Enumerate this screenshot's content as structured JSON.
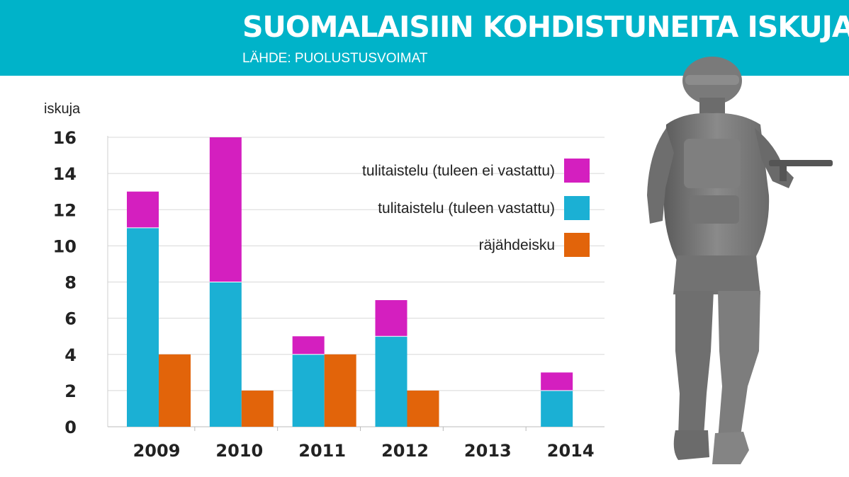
{
  "header": {
    "title": "SUOMALAISIIN KOHDISTUNEITA ISKUJA",
    "source": "LÄHDE: PUOLUSTUSVOIMAT"
  },
  "illustration": {
    "icon": "soldier-silhouette-icon"
  },
  "colors": {
    "header_bg": "#00b3c9",
    "not_returned": "#d41fbf",
    "returned": "#1bb0d4",
    "explosion": "#e2640a",
    "grid": "#d8d8d8"
  },
  "chart_data": {
    "type": "bar",
    "stacked_groups": true,
    "ylabel": "iskuja",
    "ylim": [
      0,
      16
    ],
    "yticks": [
      "0",
      "2",
      "4",
      "6",
      "8",
      "10",
      "12",
      "14",
      "16"
    ],
    "categories": [
      "2009",
      "2010",
      "2011",
      "2012",
      "2013",
      "2014"
    ],
    "series": [
      {
        "name": "tulitaistelu (tuleen ei vastattu)",
        "stack": "tulitaistelu",
        "color": "#d41fbf",
        "values": [
          2,
          8,
          1,
          2,
          0,
          1
        ]
      },
      {
        "name": "tulitaistelu (tuleen vastattu)",
        "stack": "tulitaistelu",
        "color": "#1bb0d4",
        "values": [
          11,
          8,
          4,
          5,
          0,
          2
        ]
      },
      {
        "name": "räjähdeisku",
        "stack": "rajahdeisku",
        "color": "#e2640a",
        "values": [
          4,
          2,
          4,
          2,
          0,
          0
        ]
      }
    ],
    "legend_position": "top-right",
    "grid": true
  }
}
